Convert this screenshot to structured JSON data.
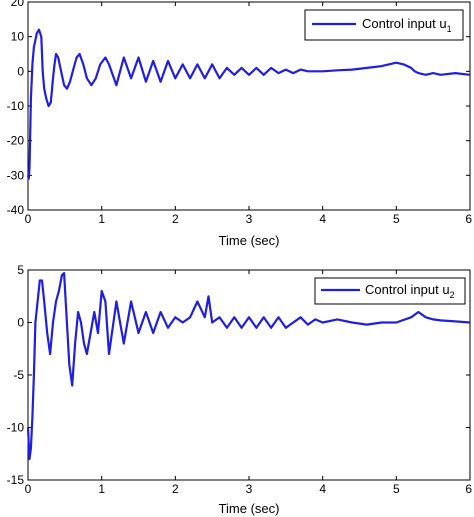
{
  "colors": {
    "series": "#1f1fe0",
    "axes": "#000000",
    "background": "#ffffff"
  },
  "chart_data": [
    {
      "type": "line",
      "xlabel": "Time (sec)",
      "ylabel": "",
      "xlim": [
        0,
        6
      ],
      "ylim": [
        -40,
        20
      ],
      "xticks": [
        0,
        1,
        2,
        3,
        4,
        5,
        6
      ],
      "yticks": [
        -40,
        -30,
        -20,
        -10,
        0,
        10,
        20
      ],
      "grid": false,
      "legend_position": "top-right",
      "series": [
        {
          "name": "Control input u",
          "name_subscript": "1",
          "x": [
            0,
            0.01,
            0.02,
            0.03,
            0.04,
            0.06,
            0.08,
            0.1,
            0.12,
            0.15,
            0.18,
            0.2,
            0.22,
            0.25,
            0.28,
            0.31,
            0.34,
            0.36,
            0.38,
            0.41,
            0.45,
            0.49,
            0.53,
            0.57,
            0.62,
            0.66,
            0.7,
            0.75,
            0.8,
            0.86,
            0.92,
            0.98,
            1.05,
            1.1,
            1.2,
            1.3,
            1.4,
            1.5,
            1.6,
            1.7,
            1.8,
            1.9,
            2.0,
            2.1,
            2.2,
            2.3,
            2.4,
            2.5,
            2.6,
            2.7,
            2.8,
            2.9,
            3.0,
            3.1,
            3.2,
            3.3,
            3.4,
            3.5,
            3.6,
            3.7,
            3.8,
            3.9,
            4.0,
            4.2,
            4.4,
            4.6,
            4.8,
            5.0,
            5.1,
            5.2,
            5.25,
            5.3,
            5.4,
            5.5,
            5.6,
            5.8,
            6.0
          ],
          "y": [
            -30,
            -31,
            -28,
            -18,
            -8,
            2,
            7,
            9,
            11,
            12,
            10,
            0,
            -5,
            -8,
            -10,
            -9,
            -2,
            2,
            5,
            4,
            0,
            -4,
            -5,
            -3,
            1,
            4,
            5,
            2,
            -2,
            -4,
            -2,
            2,
            4,
            2,
            -4,
            4,
            -2,
            4,
            -3,
            3,
            -3,
            3,
            -2,
            2,
            -2,
            2,
            -2,
            2,
            -2,
            1,
            -1,
            1,
            -1,
            1,
            -1,
            1,
            -0.5,
            0.5,
            -0.5,
            0.5,
            0,
            0,
            0,
            0.3,
            0.5,
            1,
            1.5,
            2.5,
            2,
            1,
            0,
            -0.5,
            -1,
            -0.5,
            -1,
            -0.5,
            -1
          ]
        }
      ]
    },
    {
      "type": "line",
      "xlabel": "Time (sec)",
      "ylabel": "",
      "xlim": [
        0,
        6
      ],
      "ylim": [
        -15,
        5
      ],
      "xticks": [
        0,
        1,
        2,
        3,
        4,
        5,
        6
      ],
      "yticks": [
        -15,
        -10,
        -5,
        0,
        5
      ],
      "grid": false,
      "legend_position": "top-right",
      "series": [
        {
          "name": "Control input u",
          "name_subscript": "2",
          "x": [
            0,
            0.02,
            0.04,
            0.06,
            0.08,
            0.1,
            0.13,
            0.16,
            0.19,
            0.22,
            0.26,
            0.3,
            0.34,
            0.38,
            0.42,
            0.46,
            0.49,
            0.52,
            0.56,
            0.6,
            0.64,
            0.68,
            0.72,
            0.76,
            0.8,
            0.85,
            0.9,
            0.95,
            1.0,
            1.05,
            1.1,
            1.2,
            1.3,
            1.4,
            1.5,
            1.6,
            1.7,
            1.8,
            1.9,
            2.0,
            2.1,
            2.2,
            2.3,
            2.4,
            2.45,
            2.5,
            2.6,
            2.7,
            2.8,
            2.9,
            3.0,
            3.1,
            3.2,
            3.3,
            3.4,
            3.5,
            3.6,
            3.7,
            3.8,
            3.9,
            4.0,
            4.2,
            4.4,
            4.6,
            4.8,
            5.0,
            5.2,
            5.3,
            5.4,
            5.5,
            5.6,
            5.8,
            6.0
          ],
          "y": [
            -10,
            -13,
            -12,
            -9,
            -5,
            0,
            2,
            4,
            4,
            2,
            -1,
            -3,
            0,
            2,
            3,
            4.5,
            4.7,
            1,
            -4,
            -6,
            -2,
            1,
            0,
            -2,
            -3,
            -1,
            1,
            -1,
            3,
            2,
            -3,
            2,
            -2,
            2,
            -1,
            1,
            -1,
            1,
            -0.5,
            0.5,
            0,
            0.5,
            2,
            0.5,
            2.5,
            0,
            0.5,
            -0.5,
            0.5,
            -0.5,
            0.5,
            -0.5,
            0.5,
            -0.5,
            0.5,
            -0.5,
            0,
            0.5,
            -0.2,
            0.3,
            0,
            0.3,
            0,
            -0.2,
            0,
            0,
            0.5,
            1,
            0.5,
            0.3,
            0.2,
            0.1,
            0
          ]
        }
      ]
    }
  ]
}
